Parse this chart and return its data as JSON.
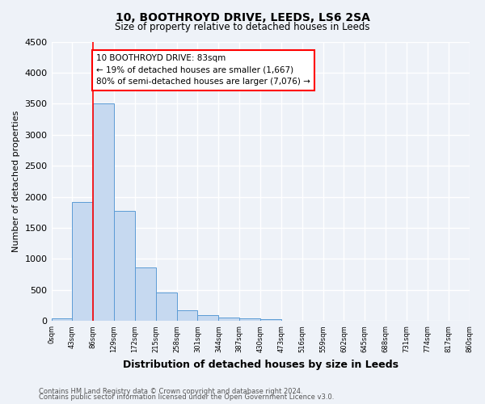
{
  "title": "10, BOOTHROYD DRIVE, LEEDS, LS6 2SA",
  "subtitle": "Size of property relative to detached houses in Leeds",
  "xlabel": "Distribution of detached houses by size in Leeds",
  "ylabel": "Number of detached properties",
  "bin_labels": [
    "0sqm",
    "43sqm",
    "86sqm",
    "129sqm",
    "172sqm",
    "215sqm",
    "258sqm",
    "301sqm",
    "344sqm",
    "387sqm",
    "430sqm",
    "473sqm",
    "516sqm",
    "559sqm",
    "602sqm",
    "645sqm",
    "688sqm",
    "731sqm",
    "774sqm",
    "817sqm",
    "860sqm"
  ],
  "bar_values": [
    40,
    1920,
    3500,
    1780,
    860,
    460,
    175,
    100,
    55,
    45,
    30,
    0,
    0,
    0,
    0,
    0,
    0,
    0,
    0,
    0
  ],
  "bar_color": "#c6d9f0",
  "bar_edge_color": "#5b9bd5",
  "vline_x": 2,
  "vline_color": "red",
  "ylim": [
    0,
    4500
  ],
  "yticks": [
    0,
    500,
    1000,
    1500,
    2000,
    2500,
    3000,
    3500,
    4000,
    4500
  ],
  "annotation_text": "10 BOOTHROYD DRIVE: 83sqm\n← 19% of detached houses are smaller (1,667)\n80% of semi-detached houses are larger (7,076) →",
  "annotation_box_color": "white",
  "annotation_box_edge_color": "red",
  "footnote1": "Contains HM Land Registry data © Crown copyright and database right 2024.",
  "footnote2": "Contains public sector information licensed under the Open Government Licence v3.0.",
  "bg_color": "#eef2f8",
  "grid_color": "white"
}
